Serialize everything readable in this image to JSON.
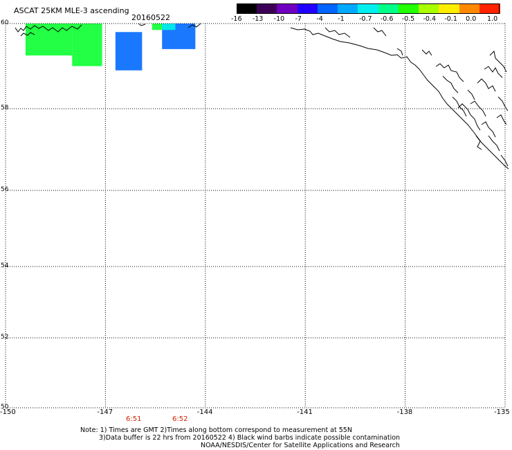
{
  "title": "ASCAT 25KM MLE-3 ascending",
  "date": "20160522",
  "colorbar": {
    "labels": [
      "-16",
      "-13",
      "-10",
      "-7",
      "-4",
      "-1",
      "-0.7",
      "-0.6",
      "-0.5",
      "-0.4",
      "-0.1",
      "0.0",
      "1.0"
    ],
    "colors": [
      "#000000",
      "#3b0055",
      "#7000c0",
      "#2200ff",
      "#0066ff",
      "#00aaff",
      "#00f0f0",
      "#00ff88",
      "#22ff00",
      "#aaff00",
      "#ffee00",
      "#ff8800",
      "#ff2200"
    ]
  },
  "axes": {
    "lat_labels": [
      "60",
      "58",
      "56",
      "54",
      "52",
      "50"
    ],
    "lon_labels": [
      "-150",
      "-147",
      "-144",
      "-141",
      "-138",
      "-135"
    ]
  },
  "times": [
    "6:51",
    "6:52"
  ],
  "notes": [
    "Note: 1) Times are GMT 2)Times along bottom correspond to measurement at 55N",
    "3)Data buffer is 22 hrs from 20160522 4) Black wind barbs indicate possible contamination",
    "NOAA/NESDIS/Center for Satellite Applications and Research"
  ],
  "data_cells": [
    {
      "lon0": -149.4,
      "lon1": -148.0,
      "lat0": 59.25,
      "lat1": 60.0,
      "color": "#22ff44"
    },
    {
      "lon0": -148.0,
      "lon1": -147.1,
      "lat0": 59.0,
      "lat1": 60.0,
      "color": "#22ff44"
    },
    {
      "lon0": -146.7,
      "lon1": -145.9,
      "lat0": 58.9,
      "lat1": 59.8,
      "color": "#1a78ff"
    },
    {
      "lon0": -145.3,
      "lon1": -144.3,
      "lat0": 59.4,
      "lat1": 60.0,
      "color": "#1a78ff"
    },
    {
      "lon0": -145.6,
      "lon1": -145.3,
      "lat0": 59.85,
      "lat1": 60.0,
      "color": "#22ff44"
    },
    {
      "lon0": -145.3,
      "lon1": -144.9,
      "lat0": 59.85,
      "lat1": 60.0,
      "color": "#00e8e8"
    }
  ],
  "colors": {
    "grid": "#000000",
    "coast": "#000000",
    "time_label": "#cc2200"
  }
}
